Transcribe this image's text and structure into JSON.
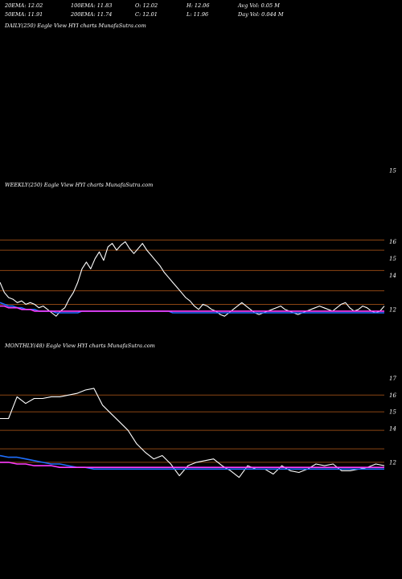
{
  "header": {
    "row1": [
      "20EMA: 12.02",
      "100EMA: 11.83",
      "O: 12.02",
      "H: 12.06",
      "Avg Vol: 0.05 M"
    ],
    "row2": [
      "50EMA: 11.91",
      "200EMA: 11.74",
      "C: 12.01",
      "L: 11.96",
      "Day Vol: 0.044  M"
    ]
  },
  "colors": {
    "price": "#ffffff",
    "ema_blue": "#1e6fff",
    "ema_magenta": "#ff3cff",
    "ema_brown": "#c8783c",
    "ema_gray": "#b4b4b4",
    "level_line": "#8b4513"
  },
  "chart_data": [
    {
      "type": "line",
      "title": "DAILY(250) Eagle  View  HYI charts MunafaSutra.com",
      "yticks": [
        15
      ],
      "series": []
    },
    {
      "type": "line",
      "title": "WEEKLY(250) Eagle  View  HYI charts MunafaSutra.com",
      "yticks": [
        16,
        15,
        14,
        12
      ],
      "ylim": [
        10.8,
        16.6
      ],
      "levels": [
        16.1,
        15.5,
        14.3,
        13.1,
        12.3
      ],
      "series": [
        {
          "name": "price",
          "values": [
            13.6,
            13.0,
            12.7,
            12.6,
            12.4,
            12.5,
            12.3,
            12.4,
            12.3,
            12.1,
            12.2,
            12.0,
            11.8,
            11.6,
            11.9,
            12.1,
            12.6,
            13.0,
            13.6,
            14.4,
            14.8,
            14.4,
            15.0,
            15.4,
            14.9,
            15.7,
            15.9,
            15.5,
            15.8,
            16.0,
            15.6,
            15.3,
            15.6,
            15.9,
            15.5,
            15.2,
            14.9,
            14.6,
            14.2,
            13.9,
            13.6,
            13.3,
            13.0,
            12.7,
            12.5,
            12.2,
            12.0,
            12.3,
            12.2,
            12.0,
            11.9,
            11.7,
            11.6,
            11.8,
            12.0,
            12.2,
            12.4,
            12.2,
            12.0,
            11.8,
            11.7,
            11.8,
            11.9,
            12.0,
            12.1,
            12.2,
            12.0,
            11.9,
            11.8,
            11.7,
            11.8,
            11.9,
            12.0,
            12.1,
            12.2,
            12.1,
            12.0,
            11.9,
            12.1,
            12.3,
            12.4,
            12.1,
            11.9,
            12.0,
            12.2,
            12.1,
            11.9,
            11.8,
            11.9,
            12.2
          ]
        },
        {
          "name": "ema_blue",
          "values": [
            12.4,
            12.3,
            12.2,
            12.2,
            12.1,
            12.1,
            12.0,
            12.0,
            12.0,
            11.9,
            11.9,
            11.9,
            11.9,
            11.8,
            11.8,
            11.8,
            11.8,
            11.8,
            11.8,
            11.9,
            11.9,
            11.9,
            11.9,
            11.9,
            11.9,
            11.9,
            11.9,
            11.9,
            11.9,
            11.9,
            11.9,
            11.9,
            11.9,
            11.9,
            11.9,
            11.9,
            11.9,
            11.9,
            11.9,
            11.9,
            11.8,
            11.8,
            11.8,
            11.8,
            11.8,
            11.8,
            11.8,
            11.8,
            11.8,
            11.8,
            11.8,
            11.8,
            11.8,
            11.8,
            11.8,
            11.8,
            11.8,
            11.8,
            11.8,
            11.8,
            11.8,
            11.8,
            11.8,
            11.8,
            11.8,
            11.8,
            11.8,
            11.8,
            11.8,
            11.8,
            11.8,
            11.8,
            11.8,
            11.8,
            11.8,
            11.8,
            11.8,
            11.8,
            11.8,
            11.8,
            11.8,
            11.8,
            11.8,
            11.8,
            11.8,
            11.8,
            11.8,
            11.8,
            11.8,
            11.8
          ]
        },
        {
          "name": "ema_magenta",
          "values": [
            12.2,
            12.2,
            12.1,
            12.1,
            12.1,
            12.0,
            12.0,
            12.0,
            11.9,
            11.9,
            11.9,
            11.9,
            11.9,
            11.9,
            11.9,
            11.9,
            11.9,
            11.9,
            11.9,
            11.9,
            11.9,
            11.9,
            11.9,
            11.9,
            11.9,
            11.9,
            11.9,
            11.9,
            11.9,
            11.9,
            11.9,
            11.9,
            11.9,
            11.9,
            11.9,
            11.9,
            11.9,
            11.9,
            11.9,
            11.9,
            11.9,
            11.9,
            11.9,
            11.9,
            11.9,
            11.9,
            11.9,
            11.9,
            11.9,
            11.9,
            11.9,
            11.9,
            11.9,
            11.9,
            11.9,
            11.9,
            11.9,
            11.9,
            11.9,
            11.9,
            11.9,
            11.9,
            11.9,
            11.9,
            11.9,
            11.9,
            11.9,
            11.9,
            11.9,
            11.9,
            11.9,
            11.9,
            11.9,
            11.9,
            11.9,
            11.9,
            11.9,
            11.9,
            11.9,
            11.9,
            11.9,
            11.9,
            11.9,
            11.9,
            11.9,
            11.9,
            11.9,
            11.9,
            11.9,
            11.9
          ]
        }
      ]
    },
    {
      "type": "line",
      "title": "MONTHLY(48) Eagle  View  HYI charts MunafaSutra.com",
      "yticks": [
        17,
        16,
        15,
        14,
        12
      ],
      "ylim": [
        10.8,
        17.4
      ],
      "levels": [
        16.0,
        15.0,
        13.9,
        12.8,
        12.0
      ],
      "series": [
        {
          "name": "price",
          "values": [
            14.6,
            14.6,
            15.9,
            15.5,
            15.8,
            15.8,
            15.9,
            15.9,
            16.0,
            16.1,
            16.3,
            16.4,
            15.4,
            14.9,
            14.4,
            13.9,
            13.1,
            12.6,
            12.2,
            12.4,
            11.9,
            11.2,
            11.8,
            12.0,
            12.1,
            12.2,
            11.8,
            11.5,
            11.1,
            11.8,
            11.6,
            11.6,
            11.3,
            11.8,
            11.5,
            11.4,
            11.6,
            11.9,
            11.8,
            11.9,
            11.5,
            11.5,
            11.6,
            11.7,
            11.9,
            11.8
          ]
        },
        {
          "name": "ema_blue",
          "values": [
            12.4,
            12.3,
            12.3,
            12.2,
            12.1,
            12.0,
            11.9,
            11.9,
            11.8,
            11.7,
            11.7,
            11.6,
            11.6,
            11.6,
            11.6,
            11.6,
            11.6,
            11.6,
            11.6,
            11.6,
            11.6,
            11.6,
            11.6,
            11.6,
            11.6,
            11.6,
            11.6,
            11.6,
            11.6,
            11.6,
            11.6,
            11.6,
            11.6,
            11.6,
            11.6,
            11.6,
            11.6,
            11.6,
            11.6,
            11.6,
            11.6,
            11.6,
            11.6,
            11.6,
            11.6,
            11.6
          ]
        },
        {
          "name": "ema_magenta",
          "values": [
            12.0,
            12.0,
            11.9,
            11.9,
            11.8,
            11.8,
            11.8,
            11.7,
            11.7,
            11.7,
            11.7,
            11.7,
            11.7,
            11.7,
            11.7,
            11.7,
            11.7,
            11.7,
            11.7,
            11.7,
            11.7,
            11.7,
            11.7,
            11.7,
            11.7,
            11.7,
            11.7,
            11.7,
            11.7,
            11.7,
            11.7,
            11.7,
            11.7,
            11.7,
            11.7,
            11.7,
            11.7,
            11.7,
            11.7,
            11.7,
            11.7,
            11.7,
            11.7,
            11.7,
            11.7,
            11.7
          ]
        }
      ]
    }
  ]
}
